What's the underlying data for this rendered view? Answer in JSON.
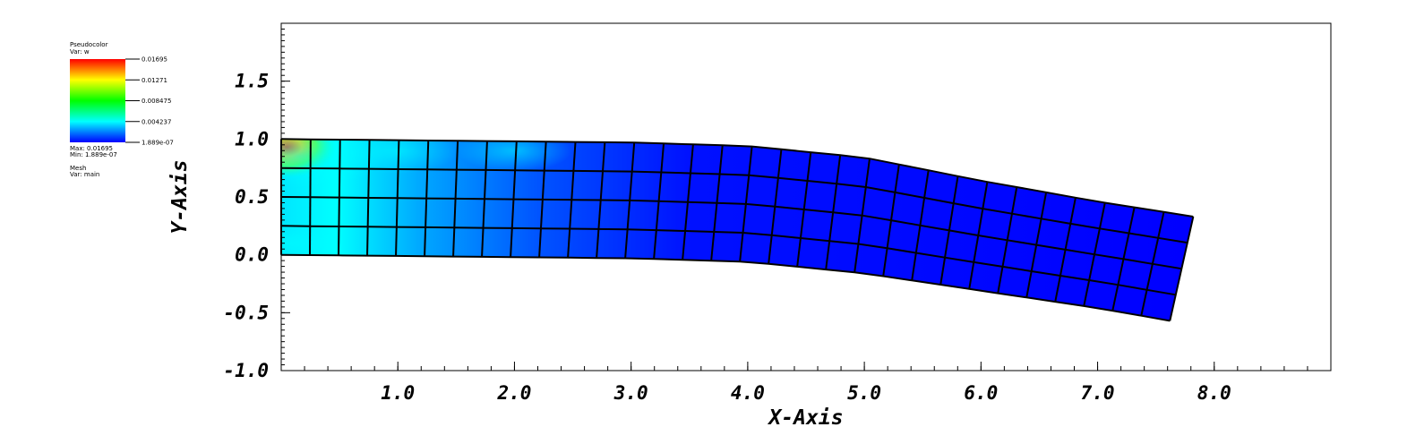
{
  "legend": {
    "plot_type": "Pseudocolor",
    "var_label": "Var: w",
    "colorbar_ticks": [
      "0.01695",
      "0.01271",
      "0.008475",
      "0.004237",
      "1.889e-07"
    ],
    "max_label": "Max: 0.01695",
    "min_label": "Min: 1.889e-07",
    "mesh_label": "Mesh",
    "mesh_var_label": "Var: main"
  },
  "colors": {
    "colormap": [
      "#0000ff",
      "#00ffff",
      "#00ff00",
      "#ffff00",
      "#ff0000"
    ],
    "mesh_lines": "#000000"
  },
  "chart_data": {
    "type": "heatmap",
    "title": "",
    "xlabel": "X-Axis",
    "ylabel": "Y-Axis",
    "xlim": [
      0,
      9
    ],
    "ylim": [
      -1,
      2
    ],
    "x_ticks": [
      {
        "value": 1,
        "label": "1.0"
      },
      {
        "value": 2,
        "label": "2.0"
      },
      {
        "value": 3,
        "label": "3.0"
      },
      {
        "value": 4,
        "label": "4.0"
      },
      {
        "value": 5,
        "label": "5.0"
      },
      {
        "value": 6,
        "label": "6.0"
      },
      {
        "value": 7,
        "label": "7.0"
      },
      {
        "value": 8,
        "label": "8.0"
      }
    ],
    "y_ticks": [
      {
        "value": -1,
        "label": "-1.0"
      },
      {
        "value": -0.5,
        "label": "-0.5"
      },
      {
        "value": 0,
        "label": "0.0"
      },
      {
        "value": 0.5,
        "label": "0.5"
      },
      {
        "value": 1,
        "label": "1.0"
      },
      {
        "value": 1.5,
        "label": "1.5"
      }
    ],
    "variable": "w",
    "value_range": [
      1.889e-07,
      0.01695
    ],
    "mesh": {
      "name": "main",
      "columns": 31,
      "rows": 4,
      "top_edge": [
        [
          0,
          1.0
        ],
        [
          1,
          0.99
        ],
        [
          2,
          0.98
        ],
        [
          3,
          0.97
        ],
        [
          4,
          0.94
        ],
        [
          5,
          0.84
        ],
        [
          6,
          0.64
        ],
        [
          7,
          0.46
        ],
        [
          7.82,
          0.33
        ]
      ],
      "bottom_edge": [
        [
          0,
          0.0
        ],
        [
          1,
          -0.01
        ],
        [
          2,
          -0.02
        ],
        [
          3,
          -0.03
        ],
        [
          4,
          -0.06
        ],
        [
          5,
          -0.16
        ],
        [
          6,
          -0.31
        ],
        [
          7,
          -0.46
        ],
        [
          7.62,
          -0.57
        ]
      ]
    },
    "field_hotspots": [
      {
        "x": 0.05,
        "y": 0.93,
        "value": 0.01695
      },
      {
        "x": 0.15,
        "y": 0.85,
        "value": 0.0127
      },
      {
        "x": 1.0,
        "y": 0.9,
        "value": 0.0055
      },
      {
        "x": 2.0,
        "y": 0.9,
        "value": 0.0042
      },
      {
        "x": 0.05,
        "y": 0.1,
        "value": 0.0042
      }
    ]
  }
}
